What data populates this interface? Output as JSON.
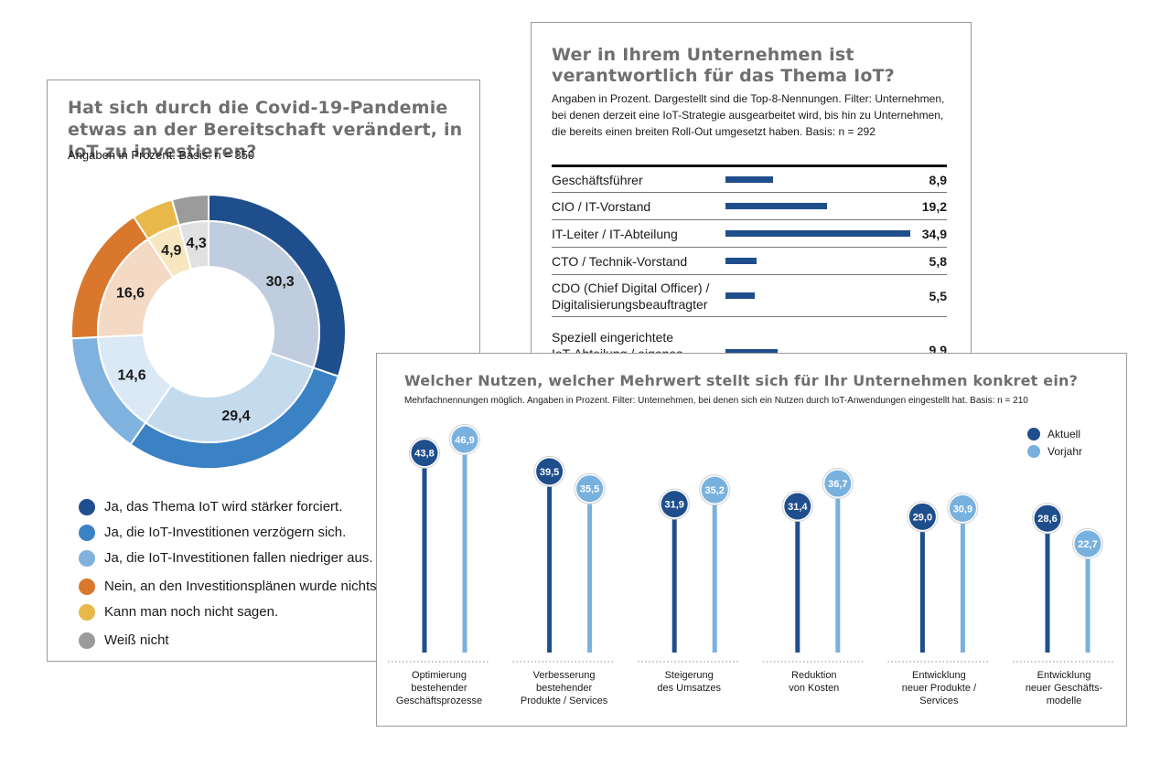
{
  "colors": {
    "dark_blue": "#1f4e8c",
    "mid_blue": "#3b82c4",
    "light_blue": "#7fb2de",
    "orange": "#d9782d",
    "yellow": "#e8b84a",
    "grey": "#9b9b9b",
    "vorjahr": "#79b1de"
  },
  "chart_data": [
    {
      "type": "pie",
      "title": "Hat sich durch die Covid-19-Pandemie etwas an der Bereitschaft verändert, in IoT zu investieren?",
      "subtitle": "Angaben in Prozent. Basis: n = 350",
      "slice_labels": [
        "30,3",
        "29,4",
        "14,6",
        "16,6",
        "4,9",
        "4,3"
      ],
      "values": [
        30.3,
        29.4,
        14.6,
        16.6,
        4.9,
        4.3
      ],
      "categories": [
        "Ja, das Thema IoT wird stärker forciert.",
        "Ja, die IoT-Investitionen verzögern sich.",
        "Ja, die IoT-Investitionen fallen niedriger aus.",
        "Nein, an den Investitionsplänen wurde nichts",
        "Kann man noch nicht sagen.",
        "Weiß nicht"
      ],
      "colors": [
        "#1f4e8c",
        "#3b82c4",
        "#7fb2de",
        "#d9782d",
        "#e8b84a",
        "#9b9b9b"
      ]
    },
    {
      "type": "bar",
      "orientation": "horizontal",
      "title": "Wer in Ihrem Unternehmen ist verantwortlich für das Thema IoT?",
      "subtitle": "Angaben in Prozent. Dargestellt sind die Top-8-Nennungen. Filter: Unternehmen, bei denen derzeit eine IoT-Strategie ausgearbeitet wird, bis hin zu Unternehmen, die bereits einen breiten Roll-Out umgesetzt haben. Basis: n = 292",
      "categories": [
        [
          "Geschäftsführer"
        ],
        [
          "CIO / IT-Vorstand"
        ],
        [
          "IT-Leiter / IT-Abteilung"
        ],
        [
          "CTO / Technik-Vorstand"
        ],
        [
          "CDO (Chief Digital Officer) /",
          "Digitalisierungsbeauftragter"
        ],
        [
          "Speziell eingerichtete",
          "IoT-Abteilung / eigenes"
        ]
      ],
      "values": [
        8.9,
        19.2,
        34.9,
        5.8,
        5.5,
        9.9
      ],
      "value_labels": [
        "8,9",
        "19,2",
        "34,9",
        "5,8",
        "5,5",
        "9,9"
      ],
      "xlim": [
        0,
        34.9
      ]
    },
    {
      "type": "lollipop",
      "title": "Welcher Nutzen, welcher Mehrwert stellt sich für Ihr Unternehmen konkret ein?",
      "subtitle": "Mehrfachnennungen möglich. Angaben in Prozent. Filter: Unternehmen, bei denen sich ein Nutzen durch IoT-Anwendungen eingestellt hat. Basis: n = 210",
      "categories": [
        [
          "Optimierung",
          "bestehender",
          "Geschäftsprozesse"
        ],
        [
          "Verbesserung",
          "bestehender",
          "Produkte / Services"
        ],
        [
          "Steigerung",
          "des Umsatzes"
        ],
        [
          "Reduktion",
          "von Kosten"
        ],
        [
          "Entwicklung",
          "neuer Produkte /",
          "Services"
        ],
        [
          "Entwicklung",
          "neuer Geschäfts-",
          "modelle"
        ]
      ],
      "series": [
        {
          "name": "Aktuell",
          "color": "#1f4e8c",
          "values": [
            43.8,
            39.5,
            31.9,
            31.4,
            29.0,
            28.6
          ],
          "labels": [
            "43,8",
            "39,5",
            "31,9",
            "31,4",
            "29,0",
            "28,6"
          ]
        },
        {
          "name": "Vorjahr",
          "color": "#79b1de",
          "values": [
            46.9,
            35.5,
            35.2,
            36.7,
            30.9,
            22.7
          ],
          "labels": [
            "46,9",
            "35,5",
            "35,2",
            "36,7",
            "30,9",
            "22,7"
          ]
        }
      ],
      "legend": "top-right"
    }
  ]
}
